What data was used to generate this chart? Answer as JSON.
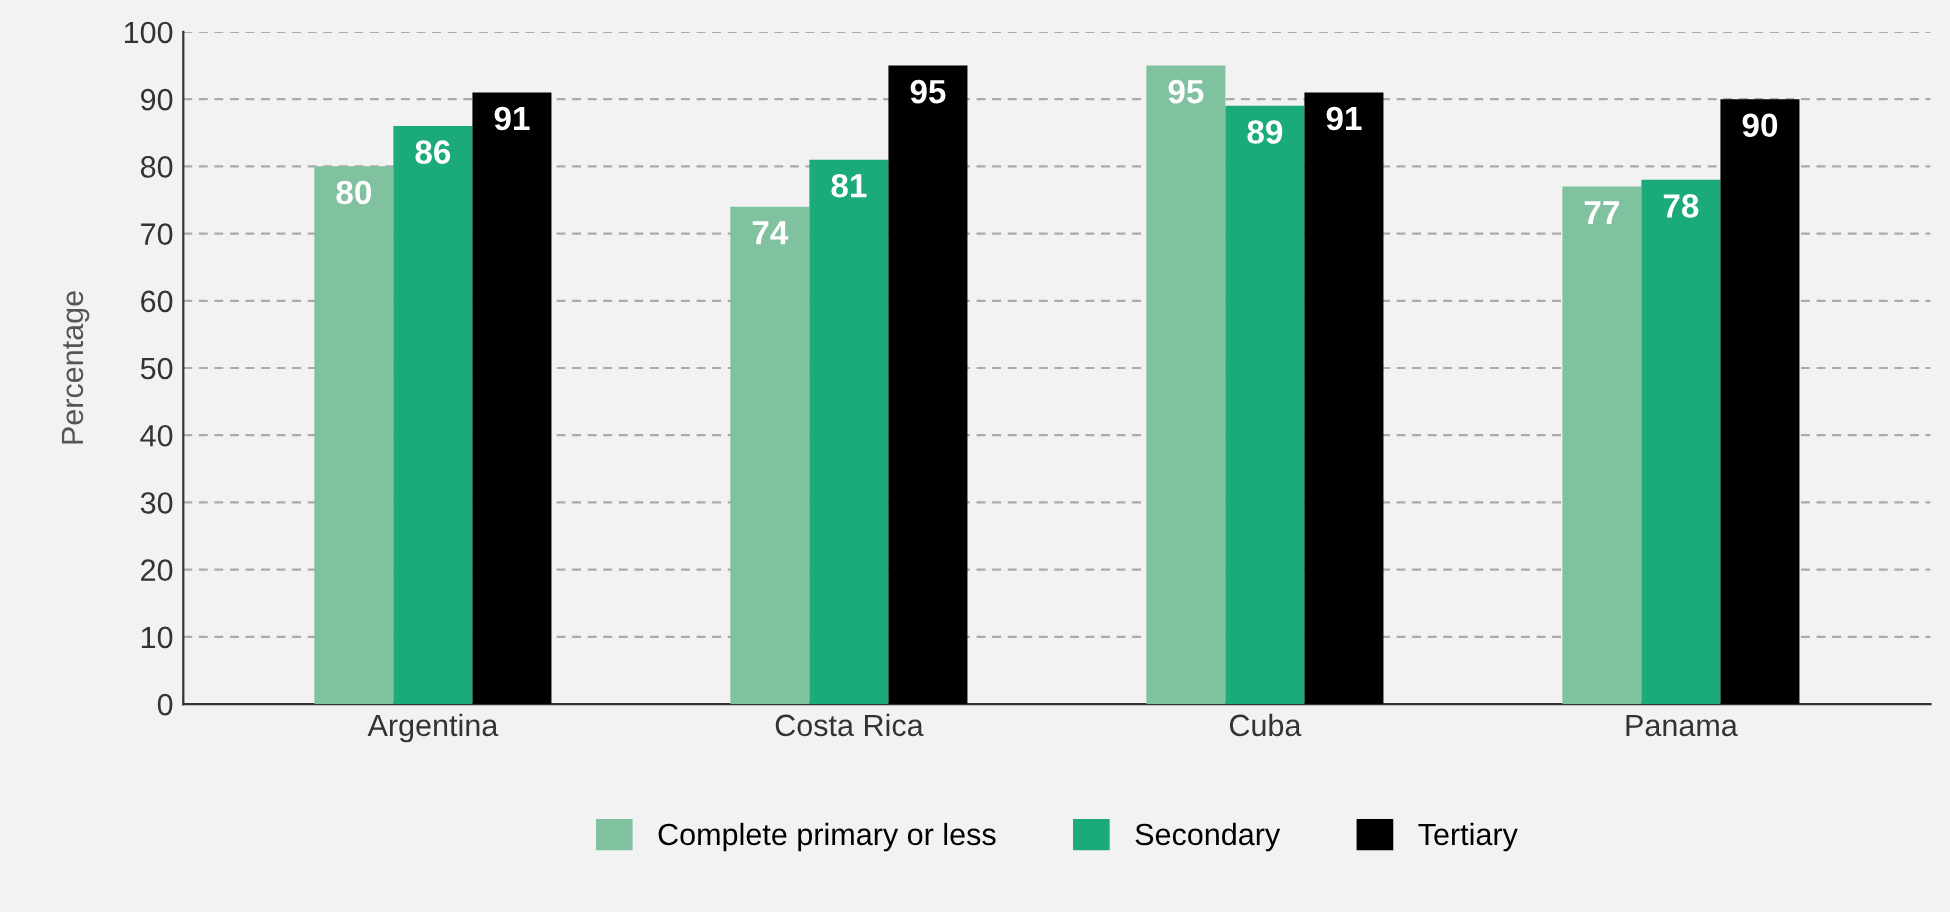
{
  "chart_data": {
    "type": "bar",
    "ylabel": "Percentage",
    "categories": [
      "Argentina",
      "Costa Rica",
      "Cuba",
      "Panama"
    ],
    "series": [
      {
        "name": "Complete primary or less",
        "color": "#80c2a0",
        "values": [
          80,
          74,
          95,
          77
        ]
      },
      {
        "name": "Secondary",
        "color": "#1aab78",
        "values": [
          86,
          81,
          89,
          78
        ]
      },
      {
        "name": "Tertiary",
        "color": "#000000",
        "values": [
          91,
          95,
          91,
          90
        ]
      }
    ],
    "ylim": [
      0,
      100
    ],
    "yticks": [
      0,
      10,
      20,
      30,
      40,
      50,
      60,
      70,
      80,
      90,
      100
    ],
    "grid": "y",
    "legend": "bottom",
    "data_labels": true
  }
}
